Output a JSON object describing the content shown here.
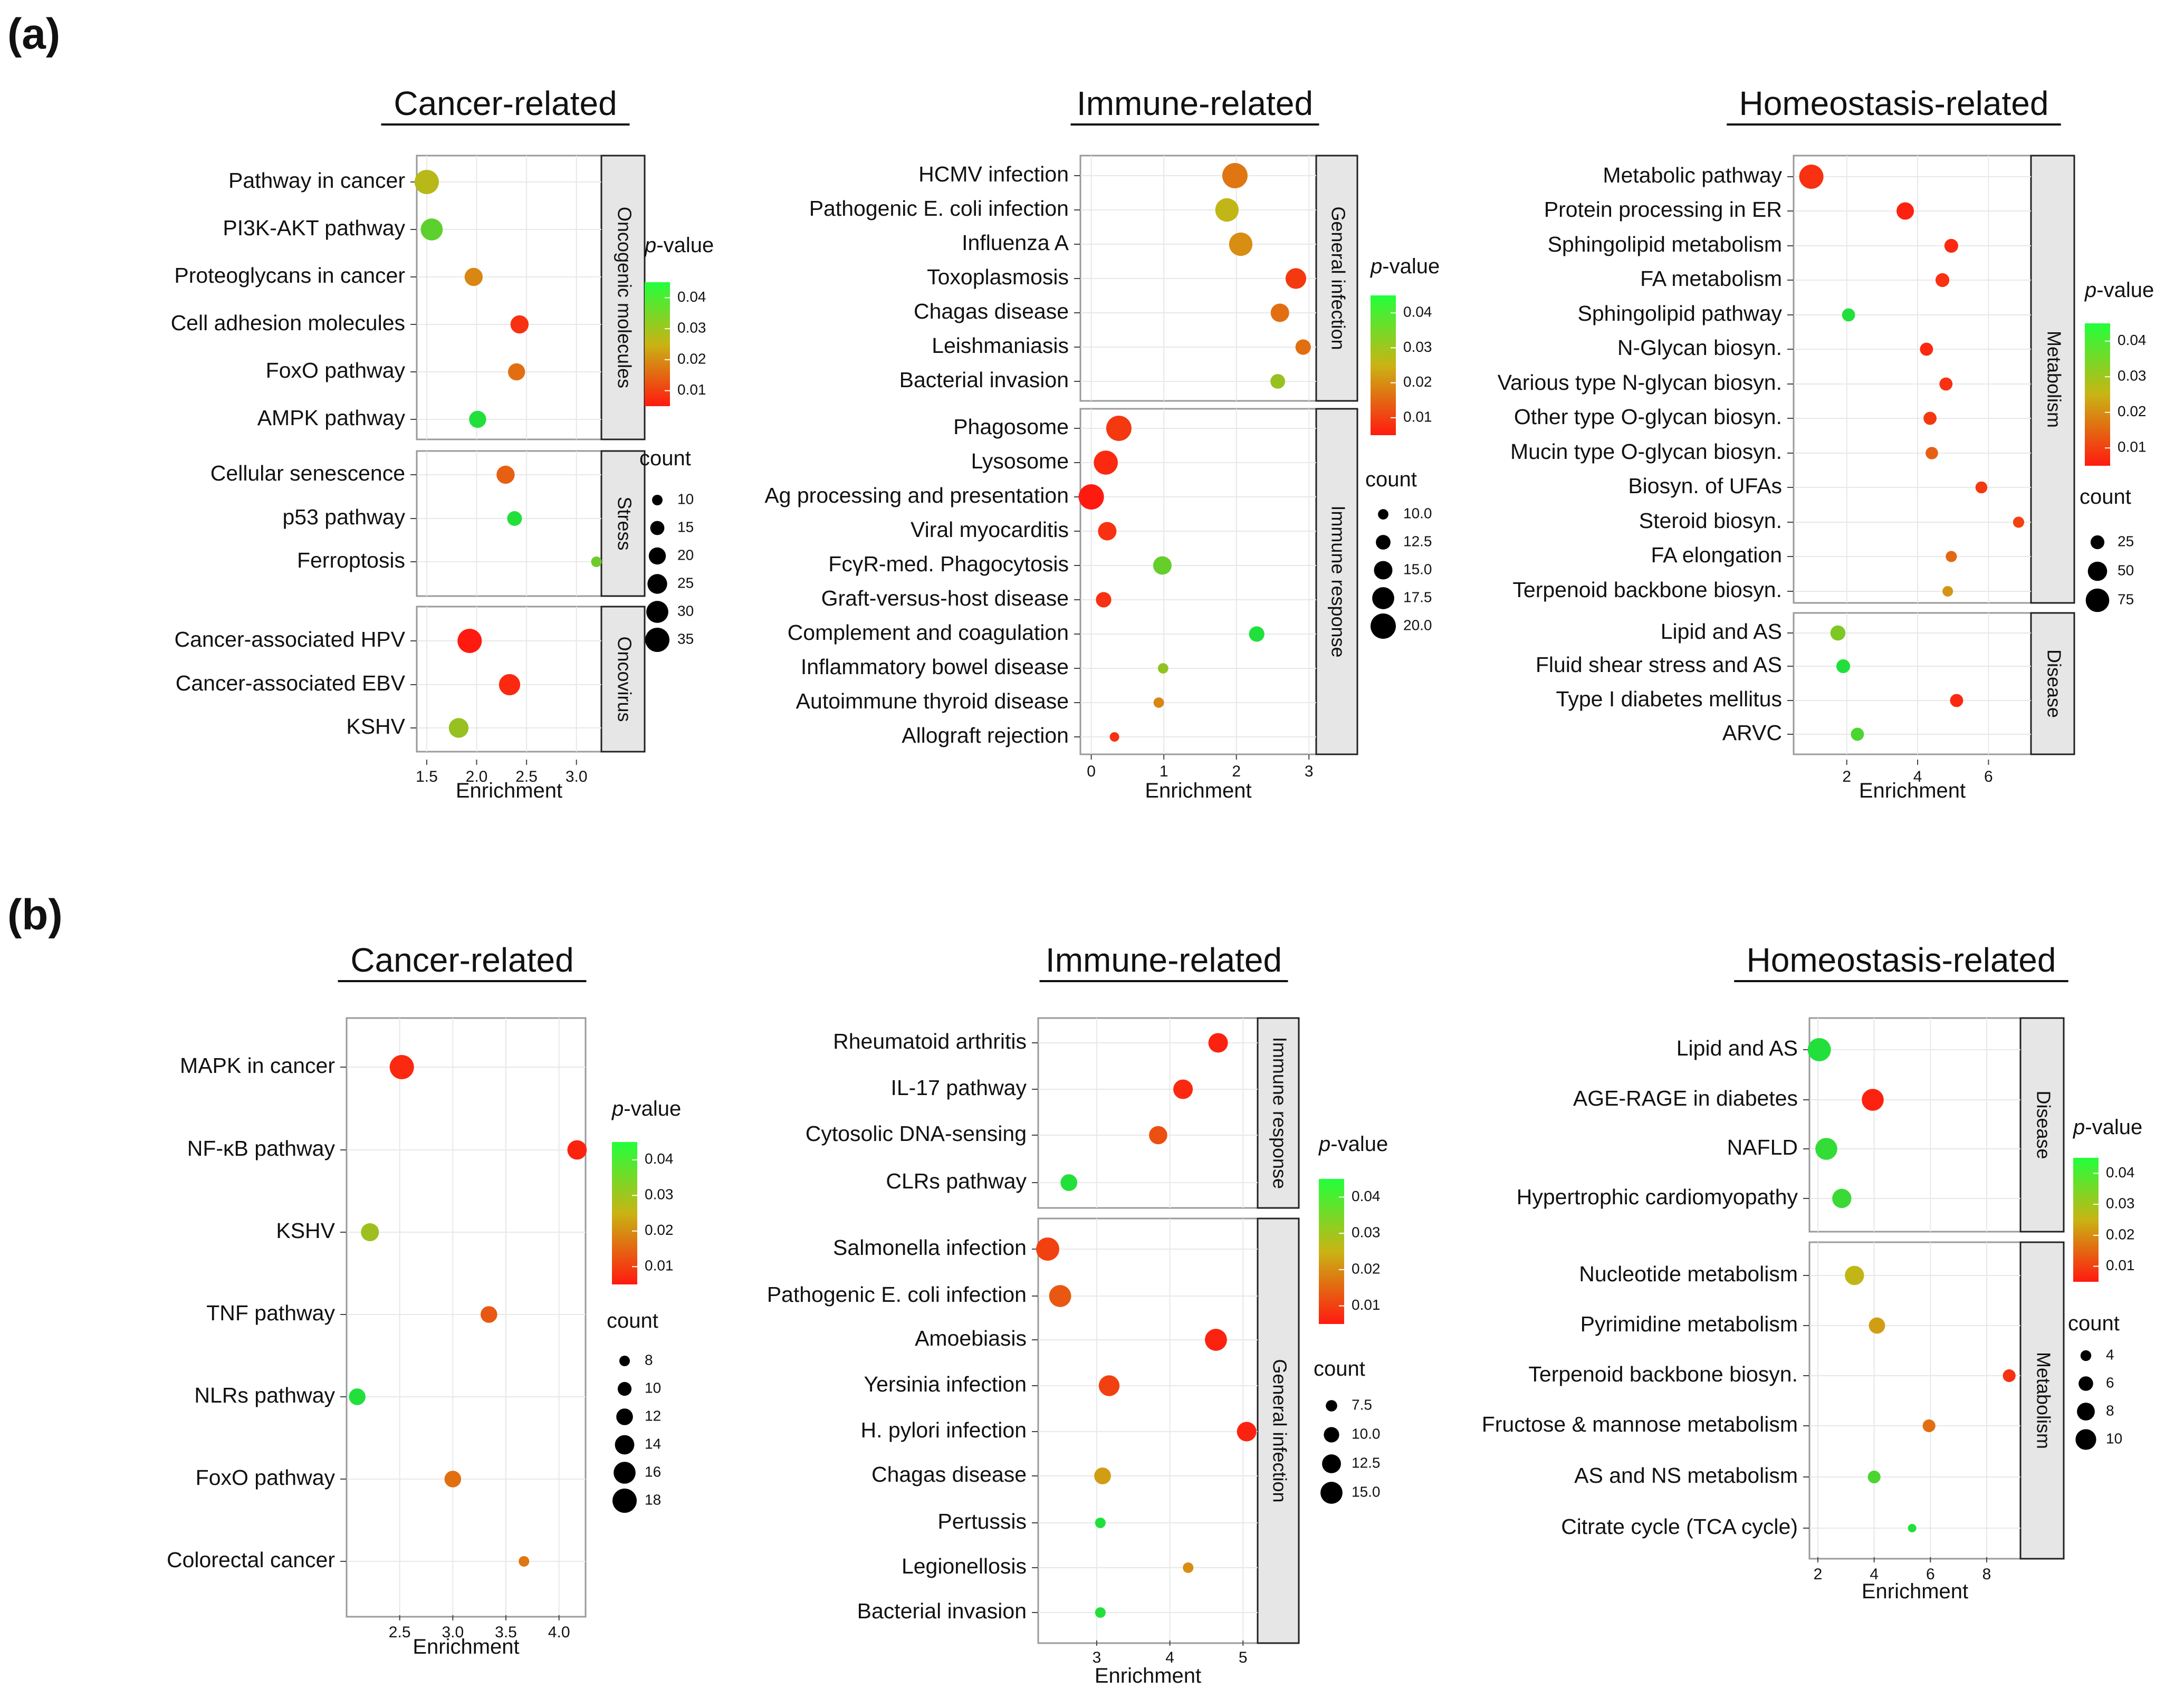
{
  "panel_labels": [
    "(a)",
    "(b)"
  ],
  "colors": {
    "low_p": "#ff1a10",
    "mid_p": "#c9b414",
    "high_p": "#22e03b",
    "strip_fill": "#e6e6e6",
    "grid": "#e8e8e8"
  },
  "chart_data": [
    {
      "type": "scatter",
      "panel": "(a)",
      "title": "Cancer-related",
      "xlabel": "Enrichment",
      "xlim": [
        1.4,
        3.25
      ],
      "xticks": [
        1.5,
        2.0,
        2.5,
        3.0
      ],
      "xtick_labels": [
        "1.5",
        "2.0",
        "2.5",
        "3.0"
      ],
      "color_legend": {
        "title_pre": "p",
        "title_post": "-value",
        "range": [
          0.005,
          0.045
        ],
        "ticks": [
          0.04,
          0.03,
          0.02,
          0.01
        ],
        "tick_labels": [
          "0.04",
          "0.03",
          "0.02",
          "0.01"
        ]
      },
      "size_legend": {
        "title": "count",
        "values": [
          10,
          15,
          20,
          25,
          30,
          35
        ],
        "labels": [
          "10",
          "15",
          "20",
          "25",
          "30",
          "35"
        ]
      },
      "facets": [
        {
          "strip": "Oncogenic molecules",
          "points": [
            {
              "label": "Pathway in cancer",
              "x": 1.5,
              "count": 35,
              "p": 0.027
            },
            {
              "label": "PI3K-AKT pathway",
              "x": 1.55,
              "count": 30,
              "p": 0.038
            },
            {
              "label": "Proteoglycans in cancer",
              "x": 1.97,
              "count": 22,
              "p": 0.019
            },
            {
              "label": "Cell adhesion molecules",
              "x": 2.43,
              "count": 22,
              "p": 0.008
            },
            {
              "label": "FoxO pathway",
              "x": 2.4,
              "count": 20,
              "p": 0.016
            },
            {
              "label": "AMPK pathway",
              "x": 2.01,
              "count": 20,
              "p": 0.045
            }
          ]
        },
        {
          "strip": "Stress",
          "points": [
            {
              "label": "Cellular senescence",
              "x": 2.29,
              "count": 22,
              "p": 0.014
            },
            {
              "label": "p53 pathway",
              "x": 2.38,
              "count": 16,
              "p": 0.045
            },
            {
              "label": "Ferroptosis",
              "x": 3.2,
              "count": 10,
              "p": 0.036
            }
          ]
        },
        {
          "strip": "Oncovirus",
          "points": [
            {
              "label": "Cancer-associated HPV",
              "x": 1.93,
              "count": 35,
              "p": 0.005
            },
            {
              "label": "Cancer-associated EBV",
              "x": 2.33,
              "count": 28,
              "p": 0.007
            },
            {
              "label": "KSHV",
              "x": 1.82,
              "count": 25,
              "p": 0.031
            }
          ]
        }
      ]
    },
    {
      "type": "scatter",
      "panel": "(a)",
      "title": "Immune-related",
      "xlabel": "Enrichment",
      "xlim": [
        -0.15,
        3.1
      ],
      "xticks": [
        0,
        1,
        2,
        3
      ],
      "xtick_labels": [
        "0",
        "1",
        "2",
        "3"
      ],
      "color_legend": {
        "title_pre": "p",
        "title_post": "-value",
        "range": [
          0.005,
          0.045
        ],
        "ticks": [
          0.04,
          0.03,
          0.02,
          0.01
        ],
        "tick_labels": [
          "0.04",
          "0.03",
          "0.02",
          "0.01"
        ]
      },
      "size_legend": {
        "title": "count",
        "values": [
          10.0,
          12.5,
          15.0,
          17.5,
          20.0
        ],
        "labels": [
          "10.0",
          "12.5",
          "15.0",
          "17.5",
          "20.0"
        ]
      },
      "facets": [
        {
          "strip": "General infection",
          "points": [
            {
              "label": "HCMV infection",
              "x": 1.98,
              "count": 20,
              "p": 0.017
            },
            {
              "label": "Pathogenic E. coli infection",
              "x": 1.87,
              "count": 18.5,
              "p": 0.026
            },
            {
              "label": "Influenza A",
              "x": 2.06,
              "count": 18.5,
              "p": 0.02
            },
            {
              "label": "Toxoplasmosis",
              "x": 2.82,
              "count": 16.5,
              "p": 0.009
            },
            {
              "label": "Chagas disease",
              "x": 2.6,
              "count": 15,
              "p": 0.016
            },
            {
              "label": "Leishmaniasis",
              "x": 2.92,
              "count": 13,
              "p": 0.016
            },
            {
              "label": "Bacterial invasion",
              "x": 2.57,
              "count": 12.5,
              "p": 0.031
            }
          ]
        },
        {
          "strip": "Immune response",
          "points": [
            {
              "label": "Phagosome",
              "x": 0.38,
              "count": 20,
              "p": 0.009
            },
            {
              "label": "Lysosome",
              "x": 0.2,
              "count": 19,
              "p": 0.007
            },
            {
              "label": "Ag processing and presentation",
              "x": 0.0,
              "count": 20,
              "p": 0.005
            },
            {
              "label": "Viral myocarditis",
              "x": 0.22,
              "count": 15,
              "p": 0.008
            },
            {
              "label": "FcγR-med. Phagocytosis",
              "x": 0.98,
              "count": 15,
              "p": 0.037
            },
            {
              "label": "Graft-versus-host disease",
              "x": 0.17,
              "count": 13,
              "p": 0.008
            },
            {
              "label": "Complement and coagulation",
              "x": 2.28,
              "count": 13,
              "p": 0.045
            },
            {
              "label": "Inflammatory bowel disease",
              "x": 0.99,
              "count": 10,
              "p": 0.032
            },
            {
              "label": "Autoimmune thyroid disease",
              "x": 0.93,
              "count": 10,
              "p": 0.019
            },
            {
              "label": "Allograft rejection",
              "x": 0.32,
              "count": 9.5,
              "p": 0.008
            }
          ]
        }
      ]
    },
    {
      "type": "scatter",
      "panel": "(a)",
      "title": "Homeostasis-related",
      "xlabel": "Enrichment",
      "xlim": [
        0.5,
        7.2
      ],
      "xticks": [
        2,
        4,
        6
      ],
      "xtick_labels": [
        "2",
        "4",
        "6"
      ],
      "color_legend": {
        "title_pre": "p",
        "title_post": "-value",
        "range": [
          0.005,
          0.045
        ],
        "ticks": [
          0.04,
          0.03,
          0.02,
          0.01
        ],
        "tick_labels": [
          "0.04",
          "0.03",
          "0.02",
          "0.01"
        ]
      },
      "size_legend": {
        "title": "count",
        "values": [
          25,
          50,
          75
        ],
        "labels": [
          "25",
          "50",
          "75"
        ]
      },
      "facets": [
        {
          "strip": "Metabolism",
          "points": [
            {
              "label": "Metabolic pathway",
              "x": 1.0,
              "count": 80,
              "p": 0.008
            },
            {
              "label": "Protein processing in ER",
              "x": 3.65,
              "count": 40,
              "p": 0.006
            },
            {
              "label": "Sphingolipid metabolism",
              "x": 4.95,
              "count": 25,
              "p": 0.007
            },
            {
              "label": "FA metabolism",
              "x": 4.7,
              "count": 25,
              "p": 0.008
            },
            {
              "label": "Sphingolipid pathway",
              "x": 2.05,
              "count": 22,
              "p": 0.045
            },
            {
              "label": "N-Glycan biosyn.",
              "x": 4.25,
              "count": 22,
              "p": 0.007
            },
            {
              "label": "Various type N-glycan biosyn.",
              "x": 4.8,
              "count": 22,
              "p": 0.008
            },
            {
              "label": "Other type O-glycan biosyn.",
              "x": 4.35,
              "count": 22,
              "p": 0.009
            },
            {
              "label": "Mucin type O-glycan biosyn.",
              "x": 4.4,
              "count": 20,
              "p": 0.014
            },
            {
              "label": "Biosyn. of UFAs",
              "x": 5.8,
              "count": 18,
              "p": 0.009
            },
            {
              "label": "Steroid biosyn.",
              "x": 6.85,
              "count": 16,
              "p": 0.01
            },
            {
              "label": "FA elongation",
              "x": 4.95,
              "count": 16,
              "p": 0.015
            },
            {
              "label": "Terpenoid backbone biosyn.",
              "x": 4.85,
              "count": 14,
              "p": 0.021
            }
          ]
        },
        {
          "strip": "Disease",
          "points": [
            {
              "label": "Lipid and AS",
              "x": 1.75,
              "count": 30,
              "p": 0.034
            },
            {
              "label": "Fluid shear stress and AS",
              "x": 1.9,
              "count": 25,
              "p": 0.045
            },
            {
              "label": "Type I diabetes mellitus",
              "x": 5.1,
              "count": 22,
              "p": 0.007
            },
            {
              "label": "ARVC",
              "x": 2.3,
              "count": 22,
              "p": 0.04
            }
          ]
        }
      ]
    },
    {
      "type": "scatter",
      "panel": "(b)",
      "title": "Cancer-related",
      "xlabel": "Enrichment",
      "xlim": [
        2.0,
        4.25
      ],
      "xticks": [
        2.5,
        3.0,
        3.5,
        4.0
      ],
      "xtick_labels": [
        "2.5",
        "3.0",
        "3.5",
        "4.0"
      ],
      "color_legend": {
        "title_pre": "p",
        "title_post": "-value",
        "range": [
          0.005,
          0.045
        ],
        "ticks": [
          0.04,
          0.03,
          0.02,
          0.01
        ],
        "tick_labels": [
          "0.04",
          "0.03",
          "0.02",
          "0.01"
        ]
      },
      "size_legend": {
        "title": "count",
        "values": [
          8,
          10,
          12,
          14,
          16,
          18
        ],
        "labels": [
          "8",
          "10",
          "12",
          "14",
          "16",
          "18"
        ]
      },
      "facets": [
        {
          "strip": "",
          "points": [
            {
              "label": "MAPK in cancer",
              "x": 2.52,
              "count": 18,
              "p": 0.007
            },
            {
              "label": "NF-κB pathway",
              "x": 4.17,
              "count": 14,
              "p": 0.006
            },
            {
              "label": "KSHV",
              "x": 2.22,
              "count": 13,
              "p": 0.03
            },
            {
              "label": "TNF pathway",
              "x": 3.34,
              "count": 12,
              "p": 0.013
            },
            {
              "label": "NLRs pathway",
              "x": 2.1,
              "count": 12,
              "p": 0.045
            },
            {
              "label": "FoxO pathway",
              "x": 3.0,
              "count": 12,
              "p": 0.016
            },
            {
              "label": "Colorectal cancer",
              "x": 3.67,
              "count": 8,
              "p": 0.017
            }
          ]
        }
      ]
    },
    {
      "type": "scatter",
      "panel": "(b)",
      "title": "Immune-related",
      "xlabel": "Enrichment",
      "xlim": [
        2.2,
        5.2
      ],
      "xticks": [
        3,
        4,
        5
      ],
      "xtick_labels": [
        "3",
        "4",
        "5"
      ],
      "color_legend": {
        "title_pre": "p",
        "title_post": "-value",
        "range": [
          0.005,
          0.045
        ],
        "ticks": [
          0.04,
          0.03,
          0.02,
          0.01
        ],
        "tick_labels": [
          "0.04",
          "0.03",
          "0.02",
          "0.01"
        ]
      },
      "size_legend": {
        "title": "count",
        "values": [
          7.5,
          10.0,
          12.5,
          15.0
        ],
        "labels": [
          "7.5",
          "10.0",
          "12.5",
          "15.0"
        ]
      },
      "facets": [
        {
          "strip": "Immune response",
          "points": [
            {
              "label": "Rheumatoid arthritis",
              "x": 4.66,
              "count": 13,
              "p": 0.006
            },
            {
              "label": "IL-17 pathway",
              "x": 4.18,
              "count": 13,
              "p": 0.007
            },
            {
              "label": "Cytosolic DNA-sensing",
              "x": 3.84,
              "count": 12,
              "p": 0.012
            },
            {
              "label": "CLRs pathway",
              "x": 2.62,
              "count": 11,
              "p": 0.045
            }
          ]
        },
        {
          "strip": "General infection",
          "points": [
            {
              "label": "Salmonella infection",
              "x": 2.33,
              "count": 16,
              "p": 0.01
            },
            {
              "label": "Pathogenic E. coli infection",
              "x": 2.5,
              "count": 15,
              "p": 0.013
            },
            {
              "label": "Amoebiasis",
              "x": 4.63,
              "count": 15,
              "p": 0.006
            },
            {
              "label": "Yersinia infection",
              "x": 3.17,
              "count": 14,
              "p": 0.01
            },
            {
              "label": "H. pylori infection",
              "x": 5.05,
              "count": 13,
              "p": 0.006
            },
            {
              "label": "Chagas disease",
              "x": 3.08,
              "count": 11,
              "p": 0.022
            },
            {
              "label": "Pertussis",
              "x": 3.05,
              "count": 7,
              "p": 0.045
            },
            {
              "label": "Legionellosis",
              "x": 4.25,
              "count": 7,
              "p": 0.02
            },
            {
              "label": "Bacterial invasion",
              "x": 3.05,
              "count": 7,
              "p": 0.045
            }
          ]
        }
      ]
    },
    {
      "type": "scatter",
      "panel": "(b)",
      "title": "Homeostasis-related",
      "xlabel": "Enrichment",
      "xlim": [
        1.7,
        9.2
      ],
      "xticks": [
        2,
        4,
        6,
        8
      ],
      "xtick_labels": [
        "2",
        "4",
        "6",
        "8"
      ],
      "color_legend": {
        "title_pre": "p",
        "title_post": "-value",
        "range": [
          0.005,
          0.045
        ],
        "ticks": [
          0.04,
          0.03,
          0.02,
          0.01
        ],
        "tick_labels": [
          "0.04",
          "0.03",
          "0.02",
          "0.01"
        ]
      },
      "size_legend": {
        "title": "count",
        "values": [
          4,
          6,
          8,
          10
        ],
        "labels": [
          "4",
          "6",
          "8",
          "10"
        ]
      },
      "facets": [
        {
          "strip": "Disease",
          "points": [
            {
              "label": "Lipid and AS",
              "x": 2.05,
              "count": 12,
              "p": 0.045
            },
            {
              "label": "AGE-RAGE in diabetes",
              "x": 3.95,
              "count": 11,
              "p": 0.006
            },
            {
              "label": "NAFLD",
              "x": 2.3,
              "count": 11,
              "p": 0.043
            },
            {
              "label": "Hypertrophic cardiomyopathy",
              "x": 2.85,
              "count": 9,
              "p": 0.042
            }
          ]
        },
        {
          "strip": "Metabolism",
          "points": [
            {
              "label": "Nucleotide metabolism",
              "x": 3.3,
              "count": 9,
              "p": 0.026
            },
            {
              "label": "Pyrimidine metabolism",
              "x": 4.1,
              "count": 7,
              "p": 0.022
            },
            {
              "label": "Terpenoid backbone biosyn.",
              "x": 8.8,
              "count": 5,
              "p": 0.008
            },
            {
              "label": "Fructose & mannose metabolism",
              "x": 5.95,
              "count": 5,
              "p": 0.016
            },
            {
              "label": "AS and NS metabolism",
              "x": 4.0,
              "count": 5,
              "p": 0.04
            },
            {
              "label": "Citrate cycle (TCA cycle)",
              "x": 5.35,
              "count": 3,
              "p": 0.045
            }
          ]
        }
      ]
    }
  ]
}
